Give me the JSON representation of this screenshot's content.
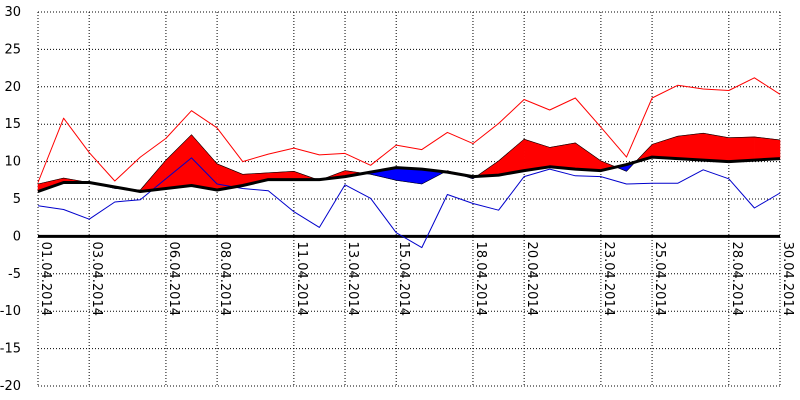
{
  "chart_data": {
    "type": "line",
    "title": "",
    "xlabel": "",
    "ylabel": "",
    "ylim": [
      -20,
      30
    ],
    "yticks": [
      30,
      25,
      20,
      15,
      10,
      5,
      0,
      -5,
      -10,
      -15,
      -20
    ],
    "ytick_labels": [
      "30",
      "25",
      "20",
      "15",
      "10",
      "5",
      "0",
      "-5",
      "-10",
      "-15",
      "-20"
    ],
    "xlim": [
      1,
      30
    ],
    "x": [
      1,
      2,
      3,
      4,
      5,
      6,
      7,
      8,
      9,
      10,
      11,
      12,
      13,
      14,
      15,
      16,
      17,
      18,
      19,
      20,
      21,
      22,
      23,
      24,
      25,
      26,
      27,
      28,
      29,
      30
    ],
    "x_tick_positions": [
      1,
      3,
      6,
      8,
      11,
      13,
      15,
      18,
      20,
      23,
      25,
      28,
      30
    ],
    "x_tick_labels": [
      "01.04.2014",
      "03.04.2014",
      "06.04.2014",
      "08.04.2014",
      "11.04.2014",
      "13.04.2014",
      "15.04.2014",
      "18.04.2014",
      "20.04.2014",
      "23.04.2014",
      "25.04.2014",
      "28.04.2014",
      "30.04.2014"
    ],
    "grid": true,
    "series": [
      {
        "key": "max",
        "values": [
          7.2,
          15.8,
          11.2,
          7.4,
          10.6,
          13.1,
          16.8,
          14.5,
          10.0,
          11.0,
          11.8,
          10.9,
          11.1,
          9.5,
          12.2,
          11.6,
          13.9,
          12.4,
          15.1,
          18.3,
          16.9,
          18.5,
          14.6,
          10.6,
          18.5,
          20.2,
          19.7,
          19.5,
          21.2,
          19.0
        ]
      },
      {
        "key": "mean",
        "values": [
          7.0,
          7.8,
          7.2,
          6.4,
          6.2,
          10.2,
          13.6,
          9.7,
          8.3,
          8.5,
          8.7,
          7.5,
          8.8,
          8.3,
          7.5,
          7.0,
          8.8,
          7.7,
          10.1,
          13.0,
          11.9,
          12.5,
          10.1,
          8.7,
          12.3,
          13.4,
          13.8,
          13.2,
          13.3,
          12.9
        ]
      },
      {
        "key": "norm",
        "values": [
          6.0,
          7.2,
          7.2,
          6.6,
          6.0,
          6.4,
          6.8,
          6.2,
          6.8,
          7.6,
          7.6,
          7.6,
          8.0,
          8.6,
          9.2,
          9.0,
          8.6,
          8.0,
          8.2,
          8.8,
          9.3,
          9.0,
          8.8,
          9.6,
          10.6,
          10.4,
          10.2,
          10.0,
          10.2,
          10.4
        ]
      },
      {
        "key": "min",
        "values": [
          4.1,
          3.6,
          2.3,
          4.6,
          4.9,
          7.7,
          10.5,
          7.0,
          6.4,
          6.1,
          3.3,
          1.2,
          6.9,
          5.1,
          0.5,
          -1.5,
          5.6,
          4.4,
          3.5,
          8.0,
          9.0,
          8.1,
          8.0,
          7.0,
          7.1,
          7.1,
          8.9,
          7.7,
          3.8,
          5.8
        ]
      }
    ],
    "colors": {
      "above_norm_fill": "#ff0000",
      "below_norm_fill": "#0000ff",
      "max_line": "#ff0000",
      "min_line": "#0000cc",
      "norm_line": "#000000",
      "grid": "#000000",
      "zero_line": "#000000"
    }
  }
}
